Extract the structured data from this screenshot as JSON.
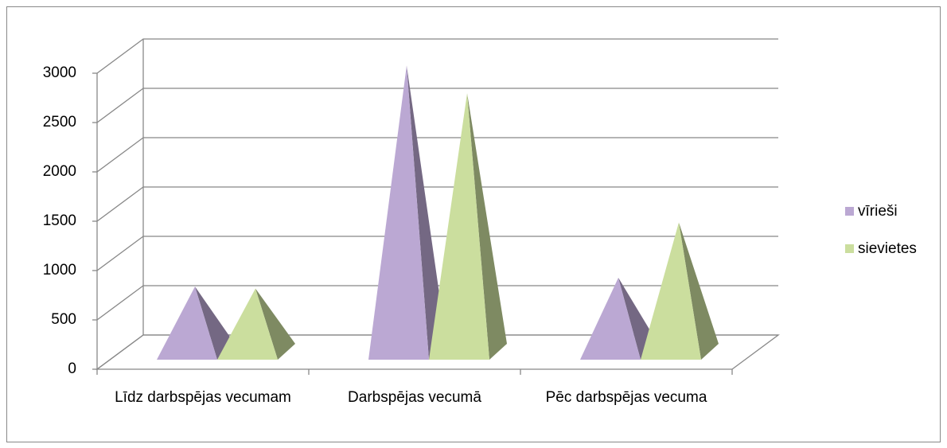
{
  "chart_data": {
    "type": "pyramid3d",
    "categories": [
      "Līdz darbspējas vecumam",
      "Darbspējas vecumā",
      "Pēc darbspējas vecuma"
    ],
    "series": [
      {
        "name": "vīrieši",
        "color": "#bba8d3",
        "values": [
          660,
          2900,
          750
        ]
      },
      {
        "name": "sievietes",
        "color": "#cbde9e",
        "values": [
          640,
          2620,
          1310
        ]
      }
    ],
    "ylim": [
      0,
      3000
    ],
    "yticks": [
      0,
      500,
      1000,
      1500,
      2000,
      2500,
      3000
    ],
    "grid": true,
    "legend": "right"
  }
}
